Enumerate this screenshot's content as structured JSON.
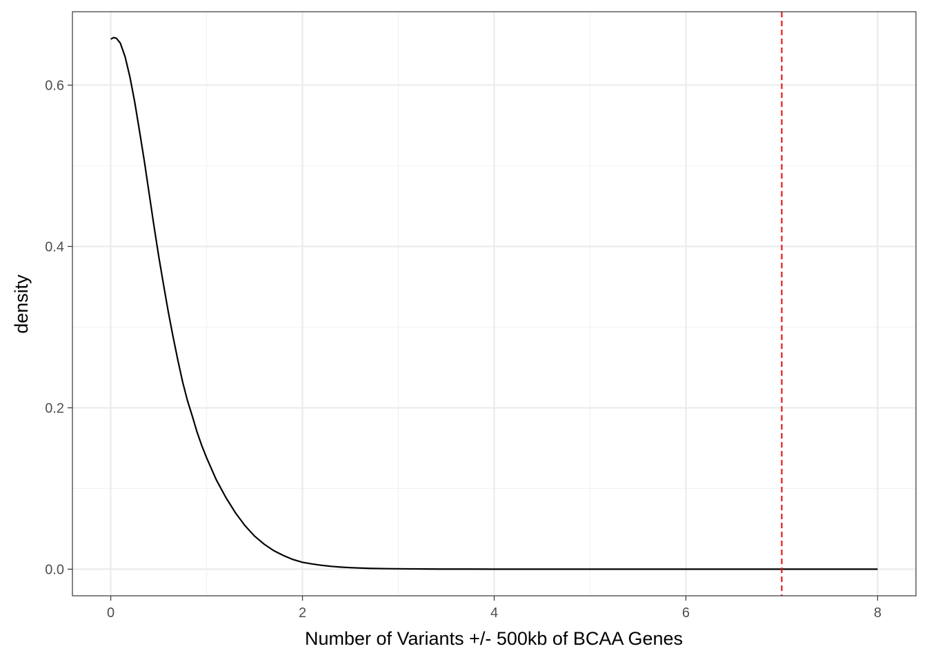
{
  "chart_data": {
    "type": "line",
    "title": "",
    "xlabel": "Number of Variants +/- 500kb of BCAA Genes",
    "ylabel": "density",
    "xlim": [
      -0.4,
      8.4
    ],
    "ylim": [
      -0.033,
      0.691
    ],
    "x_ticks": [
      0,
      2,
      4,
      6,
      8
    ],
    "x_tick_labels": [
      "0",
      "2",
      "4",
      "6",
      "8"
    ],
    "y_ticks": [
      0.0,
      0.2,
      0.4,
      0.6
    ],
    "y_tick_labels": [
      "0.0",
      "0.2",
      "0.4",
      "0.6"
    ],
    "grid": true,
    "theme": "bw",
    "series": [
      {
        "color": "#000000",
        "x": [
          0,
          0.03,
          0.06,
          0.1,
          0.15,
          0.2,
          0.25,
          0.3,
          0.35,
          0.4,
          0.45,
          0.5,
          0.55,
          0.6,
          0.65,
          0.7,
          0.75,
          0.8,
          0.85,
          0.9,
          0.95,
          1.0,
          1.1,
          1.2,
          1.3,
          1.4,
          1.5,
          1.6,
          1.7,
          1.8,
          1.9,
          2.0,
          2.1,
          2.2,
          2.3,
          2.4,
          2.5,
          2.7,
          2.9,
          3.1,
          3.3,
          3.5,
          3.75,
          4.0,
          4.5,
          5.0,
          6.0,
          7.0,
          8.0
        ],
        "y": [
          0.657,
          0.659,
          0.658,
          0.652,
          0.635,
          0.61,
          0.579,
          0.543,
          0.506,
          0.466,
          0.426,
          0.388,
          0.353,
          0.319,
          0.288,
          0.259,
          0.232,
          0.209,
          0.19,
          0.17,
          0.153,
          0.138,
          0.111,
          0.089,
          0.07,
          0.054,
          0.041,
          0.031,
          0.023,
          0.017,
          0.012,
          0.0085,
          0.0065,
          0.0048,
          0.0035,
          0.0026,
          0.0019,
          0.001,
          0.0006,
          0.0004,
          0.0002,
          0.0001,
          0.0001,
          0.0,
          0.0,
          0.0,
          0.0,
          0.0,
          0.0
        ]
      }
    ],
    "reference_lines": [
      {
        "orientation": "vertical",
        "x": 7,
        "color": "#e41a1c",
        "style": "dashed"
      }
    ],
    "colors": {
      "panel_border": "#333333",
      "grid_major": "#ebebeb",
      "grid_minor": "#f2f2f2",
      "tick_text": "#4d4d4d",
      "axis_title": "#000000"
    }
  }
}
